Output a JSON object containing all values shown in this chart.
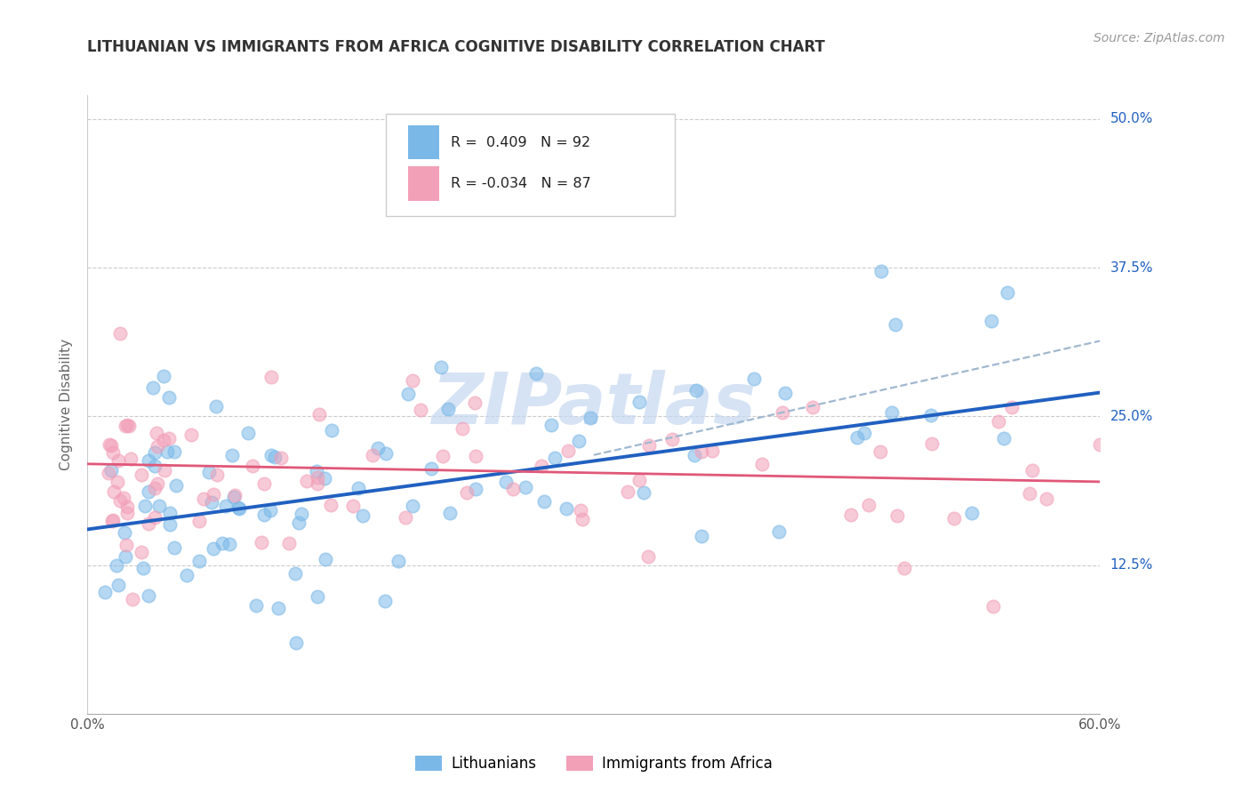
{
  "title": "LITHUANIAN VS IMMIGRANTS FROM AFRICA COGNITIVE DISABILITY CORRELATION CHART",
  "source": "Source: ZipAtlas.com",
  "ylabel": "Cognitive Disability",
  "xlim": [
    0.0,
    0.6
  ],
  "ylim": [
    0.0,
    0.52
  ],
  "ytick_positions": [
    0.125,
    0.25,
    0.375,
    0.5
  ],
  "ytick_labels": [
    "12.5%",
    "25.0%",
    "37.5%",
    "50.0%"
  ],
  "xtick_positions": [
    0.0,
    0.6
  ],
  "xtick_labels": [
    "0.0%",
    "60.0%"
  ],
  "color_blue": "#7ab8e8",
  "color_pink": "#f2a0b8",
  "line_blue": "#2060c0",
  "line_pink": "#e05878",
  "line_dash": "#8ab0d8",
  "watermark_color": "#c5d8f0",
  "legend_r1_val": "0.409",
  "legend_r1_n": "92",
  "legend_r2_val": "-0.034",
  "legend_r2_n": "87",
  "label_lithuanians": "Lithuanians",
  "label_immigrants": "Immigrants from Africa",
  "title_fontsize": 12,
  "source_fontsize": 10,
  "tick_fontsize": 11,
  "ylabel_fontsize": 11
}
